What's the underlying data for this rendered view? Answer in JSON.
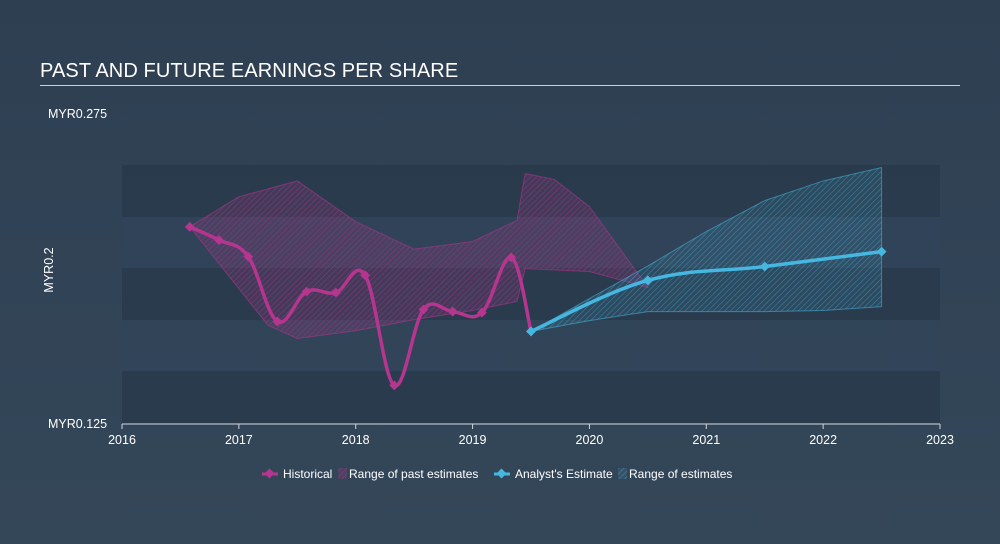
{
  "chart_data": {
    "type": "line",
    "title": "PAST AND FUTURE EARNINGS PER SHARE",
    "y_axis": {
      "top_label": "MYR0.275",
      "bottom_label": "MYR0.125",
      "side_label": "MYR0.2",
      "ylim": [
        0.125,
        0.275
      ]
    },
    "x_axis": {
      "ticks": [
        "2016",
        "2017",
        "2018",
        "2019",
        "2020",
        "2021",
        "2022",
        "2023"
      ],
      "xlim": [
        2016.0,
        2023.0
      ]
    },
    "series": [
      {
        "name": "Historical",
        "color": "#b5358f",
        "points": [
          [
            2016.58,
            0.2204
          ],
          [
            2016.83,
            0.214
          ],
          [
            2017.08,
            0.206
          ],
          [
            2017.33,
            0.1746
          ],
          [
            2017.58,
            0.1891
          ],
          [
            2017.83,
            0.1886
          ],
          [
            2018.08,
            0.197
          ],
          [
            2018.33,
            0.1437
          ],
          [
            2018.58,
            0.1804
          ],
          [
            2018.83,
            0.1794
          ],
          [
            2019.08,
            0.1789
          ],
          [
            2019.33,
            0.2056
          ],
          [
            2019.5,
            0.1698
          ]
        ]
      },
      {
        "name": "Analyst's Estimate",
        "color": "#45b7e0",
        "points": [
          [
            2019.5,
            0.1698
          ],
          [
            2020.5,
            0.1945
          ],
          [
            2021.5,
            0.2012
          ],
          [
            2022.5,
            0.2084
          ]
        ]
      }
    ],
    "bands": [
      {
        "name": "Range of past estimates",
        "color": "#b5358f",
        "upper": [
          [
            2016.58,
            0.2204
          ],
          [
            2017.0,
            0.235
          ],
          [
            2017.5,
            0.2426
          ],
          [
            2018.0,
            0.2229
          ],
          [
            2018.5,
            0.2096
          ],
          [
            2019.0,
            0.2133
          ],
          [
            2019.38,
            0.2235
          ],
          [
            2019.45,
            0.2462
          ],
          [
            2019.7,
            0.2433
          ],
          [
            2020.0,
            0.2302
          ],
          [
            2020.5,
            0.1911
          ]
        ],
        "lower": [
          [
            2020.5,
            0.1911
          ],
          [
            2020.0,
            0.1988
          ],
          [
            2019.45,
            0.2002
          ],
          [
            2019.38,
            0.1843
          ],
          [
            2019.0,
            0.1799
          ],
          [
            2018.5,
            0.1755
          ],
          [
            2018.0,
            0.1701
          ],
          [
            2017.5,
            0.1664
          ],
          [
            2017.25,
            0.1727
          ],
          [
            2016.58,
            0.2204
          ]
        ]
      },
      {
        "name": "Range of estimates",
        "color": "#45b7e0",
        "upper": [
          [
            2019.5,
            0.1698
          ],
          [
            2020.0,
            0.1857
          ],
          [
            2020.5,
            0.2015
          ],
          [
            2021.0,
            0.2181
          ],
          [
            2021.5,
            0.2331
          ],
          [
            2022.0,
            0.2426
          ],
          [
            2022.5,
            0.2491
          ]
        ],
        "lower": [
          [
            2022.5,
            0.1818
          ],
          [
            2022.0,
            0.1799
          ],
          [
            2021.5,
            0.1794
          ],
          [
            2021.0,
            0.1794
          ],
          [
            2020.5,
            0.1794
          ],
          [
            2020.0,
            0.175
          ],
          [
            2019.5,
            0.1698
          ]
        ]
      }
    ],
    "legend": {
      "position": "bottom-center",
      "items": [
        "Historical",
        "Range of past estimates",
        "Analyst's Estimate",
        "Range of estimates"
      ]
    }
  }
}
